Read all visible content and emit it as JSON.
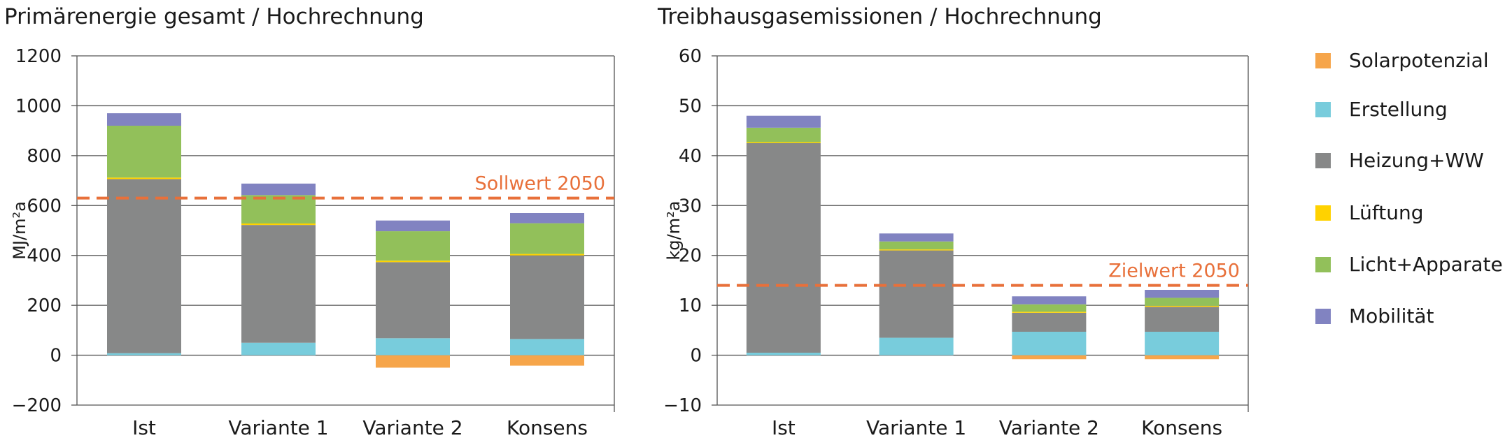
{
  "legend": [
    {
      "key": "solar",
      "label": "Solarpotenzial",
      "color": "#f6a54a"
    },
    {
      "key": "erstellung",
      "label": "Erstellung",
      "color": "#78ccdc"
    },
    {
      "key": "heizung",
      "label": "Heizung+WW",
      "color": "#878888"
    },
    {
      "key": "lueftung",
      "label": "Lüftung",
      "color": "#ffd200"
    },
    {
      "key": "licht",
      "label": "Licht+Apparate",
      "color": "#92c05a"
    },
    {
      "key": "mobilitaet",
      "label": "Mobilität",
      "color": "#8183c1"
    }
  ],
  "chart_data": [
    {
      "type": "bar",
      "stacked": true,
      "title": "Primärenergie gesamt / Hochrechnung",
      "xlabel": "",
      "ylabel": "MJ/m²a",
      "ylim": [
        -200,
        1200
      ],
      "yticks": [
        -200,
        0,
        200,
        400,
        600,
        800,
        1000,
        1200
      ],
      "grid": true,
      "categories": [
        "Ist",
        "Variante 1",
        "Variante 2",
        "Konsens"
      ],
      "series": [
        {
          "name": "Solarpotenzial",
          "values": [
            0,
            0,
            -50,
            -42
          ]
        },
        {
          "name": "Erstellung",
          "values": [
            8,
            50,
            68,
            65
          ]
        },
        {
          "name": "Heizung+WW",
          "values": [
            698,
            472,
            305,
            335
          ]
        },
        {
          "name": "Lüftung",
          "values": [
            6,
            6,
            6,
            6
          ]
        },
        {
          "name": "Licht+Apparate",
          "values": [
            208,
            114,
            118,
            123
          ]
        },
        {
          "name": "Mobilität",
          "values": [
            50,
            46,
            43,
            41
          ]
        }
      ],
      "reference_line": {
        "label": "Sollwert 2050",
        "value": 630,
        "color": "#e8703a"
      }
    },
    {
      "type": "bar",
      "stacked": true,
      "title": "Treibhausgasemissionen / Hochrechnung",
      "xlabel": "",
      "ylabel": "kg/m²a",
      "ylim": [
        -10,
        60
      ],
      "yticks": [
        -10,
        0,
        10,
        20,
        30,
        40,
        50,
        60
      ],
      "grid": true,
      "categories": [
        "Ist",
        "Variante 1",
        "Variante 2",
        "Konsens"
      ],
      "series": [
        {
          "name": "Solarpotenzial",
          "values": [
            0,
            0,
            -0.8,
            -0.8
          ]
        },
        {
          "name": "Erstellung",
          "values": [
            0.5,
            3.5,
            4.7,
            4.7
          ]
        },
        {
          "name": "Heizung+WW",
          "values": [
            42.0,
            17.5,
            3.8,
            5.0
          ]
        },
        {
          "name": "Lüftung",
          "values": [
            0.2,
            0.2,
            0.2,
            0.2
          ]
        },
        {
          "name": "Licht+Apparate",
          "values": [
            2.9,
            1.6,
            1.5,
            1.6
          ]
        },
        {
          "name": "Mobilität",
          "values": [
            2.4,
            1.6,
            1.6,
            1.6
          ]
        }
      ],
      "reference_line": {
        "label": "Zielwert 2050",
        "value": 14,
        "color": "#e8703a"
      }
    }
  ]
}
